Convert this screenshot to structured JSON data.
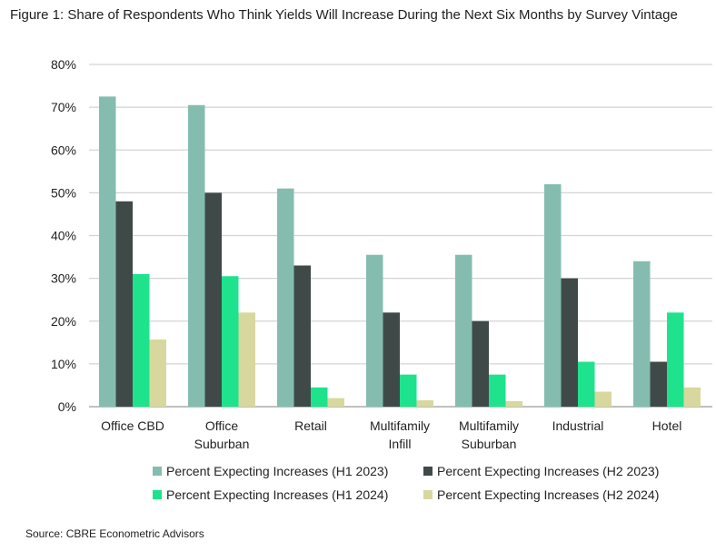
{
  "chart_data": {
    "type": "bar",
    "title": "Figure 1: Share of Respondents Who Think Yields Will Increase During the Next Six Months by Survey Vintage",
    "xlabel": "",
    "ylabel": "",
    "ylim": [
      0,
      80
    ],
    "yticks": [
      "0%",
      "10%",
      "20%",
      "30%",
      "40%",
      "50%",
      "60%",
      "70%",
      "80%"
    ],
    "categories": [
      [
        "Office CBD"
      ],
      [
        "Office",
        "Suburban"
      ],
      [
        "Retail"
      ],
      [
        "Multifamily",
        "Infill"
      ],
      [
        "Multifamily",
        "Suburban"
      ],
      [
        "Industrial"
      ],
      [
        "Hotel"
      ]
    ],
    "series": [
      {
        "name": "Percent Expecting Increases (H1 2023)",
        "color": "#84bdb0",
        "values": [
          72.5,
          70.5,
          51,
          35.5,
          35.5,
          52,
          34
        ]
      },
      {
        "name": "Percent Expecting Increases (H2 2023)",
        "color": "#3f4a48",
        "values": [
          48,
          50,
          33,
          22,
          20,
          30,
          10.5
        ]
      },
      {
        "name": "Percent Expecting Increases (H1 2024)",
        "color": "#1ee38c",
        "values": [
          31,
          30.5,
          4.5,
          7.5,
          7.5,
          10.5,
          22
        ]
      },
      {
        "name": "Percent Expecting Increases (H2 2024)",
        "color": "#d8d89e",
        "values": [
          15.7,
          22,
          2,
          1.5,
          1.3,
          3.5,
          4.5
        ]
      }
    ],
    "grid": true,
    "legend_position": "bottom"
  },
  "source": "Source: CBRE Econometric Advisors"
}
